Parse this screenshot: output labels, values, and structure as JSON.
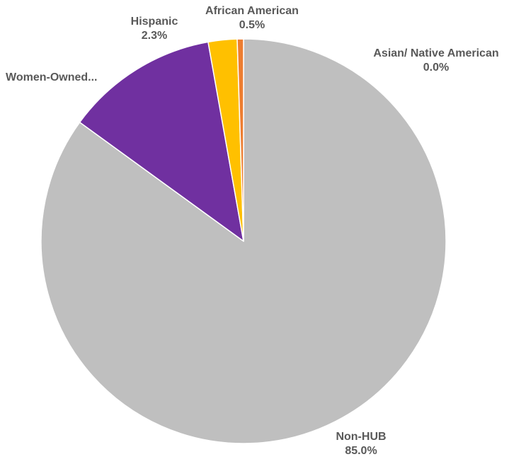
{
  "chart_data": {
    "type": "pie",
    "title": "",
    "start_angle_deg": 0,
    "direction": "clockwise",
    "slices": [
      {
        "name": "Asian/ Native American",
        "value": 0.0,
        "value_label": "0.0%",
        "color": "#4472C4"
      },
      {
        "name": "Non-HUB",
        "value": 85.0,
        "value_label": "85.0%",
        "color": "#BFBFBF"
      },
      {
        "name": "Women-Owned...",
        "value": 12.2,
        "value_label": "",
        "color": "#7030A0"
      },
      {
        "name": "Hispanic",
        "value": 2.3,
        "value_label": "2.3%",
        "color": "#FFC000"
      },
      {
        "name": "African American",
        "value": 0.5,
        "value_label": "0.5%",
        "color": "#ED7D31"
      }
    ]
  }
}
